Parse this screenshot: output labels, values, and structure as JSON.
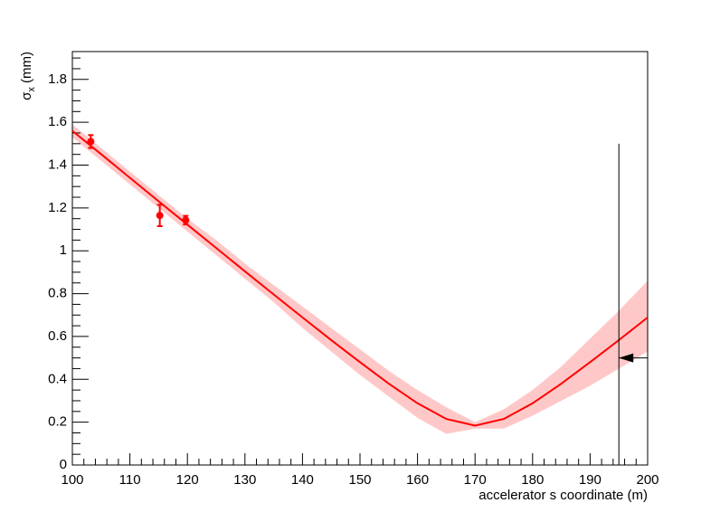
{
  "chart_data": {
    "type": "line",
    "x_label": "accelerator s coordinate (m)",
    "y_label": {
      "symbol": "σ",
      "subscript": "x",
      "unit": "(mm)"
    },
    "xlim": [
      100,
      200
    ],
    "ylim": [
      0,
      1.93
    ],
    "xticks": [
      100,
      110,
      120,
      130,
      140,
      150,
      160,
      170,
      180,
      190,
      200
    ],
    "yticks": [
      0,
      0.2,
      0.4,
      0.6,
      0.8,
      1,
      1.2,
      1.4,
      1.6,
      1.8
    ],
    "color": "#ff0000",
    "band_color": "#ffc8c8",
    "x": [
      100,
      105,
      110,
      115,
      120,
      125,
      130,
      135,
      140,
      145,
      150,
      155,
      160,
      165,
      170,
      175,
      180,
      185,
      190,
      195,
      200
    ],
    "values": [
      1.56,
      1.451,
      1.341,
      1.231,
      1.122,
      1.013,
      0.904,
      0.796,
      0.689,
      0.583,
      0.48,
      0.38,
      0.288,
      0.215,
      0.184,
      0.215,
      0.288,
      0.38,
      0.48,
      0.583,
      0.689
    ],
    "band_lower": [
      1.53,
      1.42,
      1.31,
      1.2,
      1.09,
      0.98,
      0.87,
      0.76,
      0.64,
      0.53,
      0.42,
      0.32,
      0.22,
      0.145,
      0.17,
      0.17,
      0.23,
      0.3,
      0.37,
      0.45,
      0.53
    ],
    "band_upper": [
      1.59,
      1.48,
      1.37,
      1.26,
      1.15,
      1.05,
      0.94,
      0.84,
      0.74,
      0.64,
      0.54,
      0.44,
      0.35,
      0.27,
      0.2,
      0.26,
      0.35,
      0.46,
      0.59,
      0.72,
      0.86
    ],
    "points": {
      "x": [
        103.2,
        115.2,
        119.7
      ],
      "values": [
        1.51,
        1.165,
        1.143
      ],
      "errors": [
        0.03,
        0.05,
        0.02
      ]
    },
    "limit_line": {
      "x": 195,
      "ymax": 1.5
    },
    "arrow": {
      "y": 0.5,
      "x_from": 200,
      "x_to": 195
    }
  }
}
